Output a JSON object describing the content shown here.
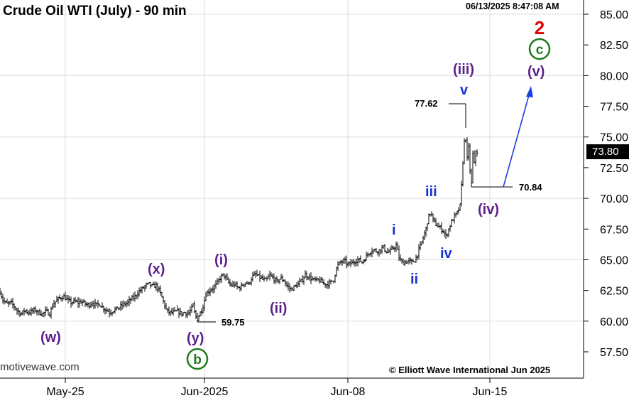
{
  "header": {
    "title": "Crude Oil WTI (July) - 90 min",
    "timestamp": "06/13/2025 8:47:08 AM"
  },
  "footer": {
    "watermark_left": "motivewave.com",
    "copyright": "© Elliott Wave International Jun 2025"
  },
  "current_price": "73.80",
  "colors": {
    "purple": "#5b1f8c",
    "blue": "#1530d6",
    "green": "#1e7a1e",
    "red": "#e60000",
    "projection": "#1c3fe0"
  },
  "chart_data": {
    "type": "ohlc",
    "ylim": [
      56,
      86
    ],
    "yticks": [
      "57.50",
      "60.00",
      "62.50",
      "65.00",
      "67.50",
      "70.00",
      "72.50",
      "75.00",
      "77.50",
      "80.00",
      "82.50",
      "85.00"
    ],
    "xticks": [
      "May-25",
      "Jun-2025",
      "Jun-08",
      "Jun-15"
    ],
    "grid": true,
    "price_path": [
      [
        0,
        62.4
      ],
      [
        5,
        61.6
      ],
      [
        10,
        61.4
      ],
      [
        15,
        61.5
      ],
      [
        20,
        61.2
      ],
      [
        25,
        60.8
      ],
      [
        30,
        60.6
      ],
      [
        35,
        60.9
      ],
      [
        40,
        60.7
      ],
      [
        45,
        60.8
      ],
      [
        50,
        60.9
      ],
      [
        55,
        60.7
      ],
      [
        60,
        60.6
      ],
      [
        65,
        60.8
      ],
      [
        70,
        60.6
      ],
      [
        75,
        61.4
      ],
      [
        80,
        61.7
      ],
      [
        85,
        61.9
      ],
      [
        90,
        62.0
      ],
      [
        95,
        61.7
      ],
      [
        100,
        61.5
      ],
      [
        105,
        61.6
      ],
      [
        110,
        61.5
      ],
      [
        115,
        61.6
      ],
      [
        120,
        61.4
      ],
      [
        125,
        61.3
      ],
      [
        130,
        61.5
      ],
      [
        135,
        61.3
      ],
      [
        140,
        61.4
      ],
      [
        145,
        61.1
      ],
      [
        150,
        60.9
      ],
      [
        155,
        60.7
      ],
      [
        160,
        60.9
      ],
      [
        165,
        61.0
      ],
      [
        170,
        61.2
      ],
      [
        175,
        61.4
      ],
      [
        180,
        61.5
      ],
      [
        185,
        61.8
      ],
      [
        190,
        62.0
      ],
      [
        195,
        62.4
      ],
      [
        200,
        62.6
      ],
      [
        205,
        62.9
      ],
      [
        210,
        63.0
      ],
      [
        215,
        62.8
      ],
      [
        220,
        62.9
      ],
      [
        225,
        62.4
      ],
      [
        230,
        61.6
      ],
      [
        235,
        60.8
      ],
      [
        240,
        60.7
      ],
      [
        245,
        60.7
      ],
      [
        250,
        60.8
      ],
      [
        255,
        60.6
      ],
      [
        260,
        60.7
      ],
      [
        265,
        60.6
      ],
      [
        270,
        61.0
      ],
      [
        272,
        61.3
      ],
      [
        275,
        60.4
      ],
      [
        278,
        60.2
      ],
      [
        282,
        60.7
      ],
      [
        285,
        61.0
      ],
      [
        290,
        62.2
      ],
      [
        295,
        62.5
      ],
      [
        300,
        62.7
      ],
      [
        305,
        63.0
      ],
      [
        310,
        63.5
      ],
      [
        315,
        63.8
      ],
      [
        320,
        63.3
      ],
      [
        325,
        62.9
      ],
      [
        330,
        63.0
      ],
      [
        335,
        62.7
      ],
      [
        340,
        62.8
      ],
      [
        345,
        63.2
      ],
      [
        350,
        63.0
      ],
      [
        355,
        63.6
      ],
      [
        360,
        63.8
      ],
      [
        365,
        63.6
      ],
      [
        370,
        63.4
      ],
      [
        375,
        63.3
      ],
      [
        380,
        63.7
      ],
      [
        385,
        63.5
      ],
      [
        390,
        63.2
      ],
      [
        395,
        63.5
      ],
      [
        400,
        63.3
      ],
      [
        405,
        62.8
      ],
      [
        410,
        62.6
      ],
      [
        415,
        62.8
      ],
      [
        420,
        63.0
      ],
      [
        425,
        63.3
      ],
      [
        430,
        63.8
      ],
      [
        435,
        63.6
      ],
      [
        440,
        63.4
      ],
      [
        445,
        63.3
      ],
      [
        450,
        63.3
      ],
      [
        455,
        63.1
      ],
      [
        460,
        63.0
      ],
      [
        465,
        63.1
      ],
      [
        470,
        63.4
      ],
      [
        475,
        64.5
      ],
      [
        480,
        64.8
      ],
      [
        485,
        64.9
      ],
      [
        490,
        64.6
      ],
      [
        495,
        64.7
      ],
      [
        500,
        64.9
      ],
      [
        505,
        65.0
      ],
      [
        510,
        64.8
      ],
      [
        515,
        65.2
      ],
      [
        520,
        65.6
      ],
      [
        525,
        65.8
      ],
      [
        530,
        65.7
      ],
      [
        535,
        65.8
      ],
      [
        540,
        66.0
      ],
      [
        545,
        65.6
      ],
      [
        550,
        65.7
      ],
      [
        555,
        66.0
      ],
      [
        558,
        66.2
      ],
      [
        562,
        65.2
      ],
      [
        565,
        64.8
      ],
      [
        570,
        64.8
      ],
      [
        575,
        64.9
      ],
      [
        580,
        64.8
      ],
      [
        585,
        65.0
      ],
      [
        590,
        65.8
      ],
      [
        595,
        66.6
      ],
      [
        600,
        67.5
      ],
      [
        603,
        68.4
      ],
      [
        607,
        68.9
      ],
      [
        610,
        68.2
      ],
      [
        615,
        67.8
      ],
      [
        620,
        67.6
      ],
      [
        625,
        67.3
      ],
      [
        628,
        66.9
      ],
      [
        632,
        67.5
      ],
      [
        636,
        68.1
      ],
      [
        640,
        68.5
      ],
      [
        645,
        68.9
      ],
      [
        648,
        69.4
      ],
      [
        650,
        71.0
      ],
      [
        652,
        73.0
      ],
      [
        654,
        74.6
      ],
      [
        656,
        74.9
      ],
      [
        658,
        73.2
      ],
      [
        660,
        74.1
      ],
      [
        662,
        72.3
      ],
      [
        664,
        71.2
      ],
      [
        666,
        73.6
      ],
      [
        668,
        72.8
      ],
      [
        670,
        73.9
      ],
      [
        672,
        73.8
      ]
    ],
    "annotations": {
      "price_labels": [
        {
          "text": "77.62",
          "price": 77.62
        },
        {
          "text": "70.84",
          "price": 70.84
        },
        {
          "text": "59.75",
          "price": 59.75
        }
      ],
      "wave_labels": {
        "w": "(w)",
        "x": "(x)",
        "y": "(y)",
        "b": "b",
        "i_paren": "(i)",
        "ii_paren": "(ii)",
        "iii_paren": "(iii)",
        "iv_paren": "(iv)",
        "v_paren": "(v)",
        "i": "i",
        "ii": "ii",
        "iii": "iii",
        "iv": "iv",
        "v": "v",
        "c": "c",
        "two": "2"
      }
    }
  }
}
